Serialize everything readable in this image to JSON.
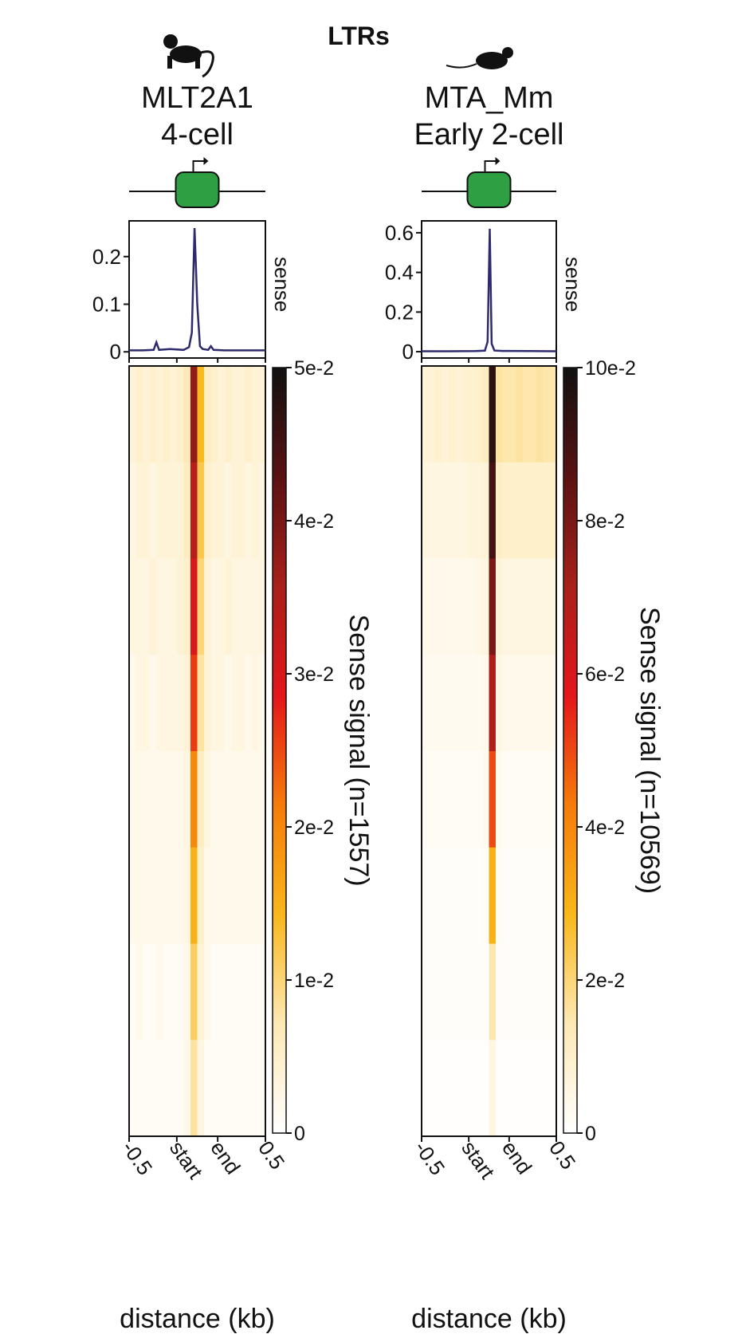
{
  "title": "LTRs",
  "chart_data": [
    {
      "type": "heatmap_profile",
      "title": [
        "MLT2A1",
        "4-cell"
      ],
      "profile": {
        "label": "sense",
        "color": "#2e2a6e",
        "x": [
          -0.5,
          -0.4,
          -0.32,
          -0.3,
          -0.28,
          -0.2,
          -0.1,
          -0.06,
          -0.04,
          -0.02,
          0,
          0.02,
          0.04,
          0.08,
          0.1,
          0.12,
          0.2,
          0.3,
          0.4,
          0.5
        ],
        "values": [
          0.003,
          0.003,
          0.004,
          0.02,
          0.004,
          0.006,
          0.004,
          0.01,
          0.04,
          0.26,
          0.1,
          0.012,
          0.006,
          0.004,
          0.012,
          0.004,
          0.003,
          0.003,
          0.003,
          0.003
        ],
        "ylim": [
          -0.013,
          0.275
        ],
        "yticks": [
          0,
          0.1,
          0.2
        ]
      },
      "heatmap": {
        "colorbar_label": "Sense signal (n=1557)",
        "bins": [
          -0.5,
          -0.45,
          -0.4,
          -0.35,
          -0.3,
          -0.25,
          -0.2,
          -0.15,
          -0.1,
          -0.05,
          0,
          0.05,
          0.1,
          0.15,
          0.2,
          0.25,
          0.3,
          0.35,
          0.4,
          0.45,
          0.5
        ],
        "rows": [
          [
            0.004,
            0.005,
            0.004,
            0.005,
            0.004,
            0.005,
            0.004,
            0.005,
            0.007,
            0.038,
            0.014,
            0.006,
            0.005,
            0.004,
            0.005,
            0.004,
            0.004,
            0.005,
            0.004,
            0.004
          ],
          [
            0.003,
            0.004,
            0.004,
            0.003,
            0.004,
            0.004,
            0.004,
            0.004,
            0.006,
            0.034,
            0.012,
            0.005,
            0.004,
            0.004,
            0.003,
            0.004,
            0.004,
            0.003,
            0.004,
            0.003
          ],
          [
            0.003,
            0.003,
            0.003,
            0.004,
            0.003,
            0.003,
            0.003,
            0.004,
            0.005,
            0.03,
            0.01,
            0.004,
            0.003,
            0.003,
            0.004,
            0.003,
            0.003,
            0.003,
            0.003,
            0.003
          ],
          [
            0.002,
            0.003,
            0.003,
            0.002,
            0.003,
            0.003,
            0.003,
            0.003,
            0.004,
            0.026,
            0.008,
            0.004,
            0.003,
            0.003,
            0.002,
            0.003,
            0.003,
            0.002,
            0.003,
            0.002
          ],
          [
            0.002,
            0.002,
            0.002,
            0.002,
            0.002,
            0.002,
            0.002,
            0.002,
            0.003,
            0.02,
            0.006,
            0.003,
            0.002,
            0.002,
            0.002,
            0.002,
            0.002,
            0.002,
            0.002,
            0.002
          ],
          [
            0.002,
            0.002,
            0.002,
            0.002,
            0.002,
            0.002,
            0.002,
            0.002,
            0.003,
            0.015,
            0.005,
            0.002,
            0.002,
            0.002,
            0.002,
            0.002,
            0.002,
            0.002,
            0.002,
            0.002
          ],
          [
            0.001,
            0.002,
            0.001,
            0.001,
            0.002,
            0.001,
            0.001,
            0.001,
            0.002,
            0.011,
            0.004,
            0.002,
            0.001,
            0.001,
            0.001,
            0.001,
            0.001,
            0.001,
            0.001,
            0.001
          ],
          [
            0.001,
            0.001,
            0.001,
            0.001,
            0.001,
            0.001,
            0.001,
            0.001,
            0.002,
            0.008,
            0.003,
            0.001,
            0.001,
            0.001,
            0.001,
            0.001,
            0.001,
            0.001,
            0.001,
            0.001
          ]
        ],
        "clim": [
          0,
          0.05
        ],
        "cticks": [
          0,
          {
            "value": 0.01,
            "label": "1e-2"
          },
          {
            "value": 0.02,
            "label": "2e-2"
          },
          {
            "value": 0.03,
            "label": "3e-2"
          },
          {
            "value": 0.04,
            "label": "4e-2"
          },
          {
            "value": 0.05,
            "label": "5e-2"
          }
        ],
        "colormap": [
          "#ffffff",
          "#fde9b5",
          "#f9b71a",
          "#f57c0a",
          "#e4161b",
          "#a8201a",
          "#5a1212",
          "#111111"
        ]
      },
      "xlabel": "distance (kb)",
      "xlim": [
        -0.5,
        0.5
      ],
      "xticks": [
        -0.5,
        {
          "value": -0.15,
          "label": "start"
        },
        {
          "value": 0.15,
          "label": "end"
        },
        0.5
      ]
    },
    {
      "type": "heatmap_profile",
      "title": [
        "MTA_Mm",
        "Early 2-cell"
      ],
      "profile": {
        "label": "sense",
        "color": "#2e2a6e",
        "x": [
          -0.5,
          -0.3,
          -0.1,
          -0.03,
          -0.01,
          0.006,
          0.02,
          0.04,
          0.1,
          0.3,
          0.5
        ],
        "values": [
          0.002,
          0.002,
          0.003,
          0.005,
          0.05,
          0.62,
          0.04,
          0.006,
          0.004,
          0.003,
          0.002
        ],
        "ylim": [
          -0.032,
          0.66
        ],
        "yticks": [
          0,
          0.2,
          0.4,
          0.6
        ]
      },
      "heatmap": {
        "colorbar_label": "Sense signal (n=10569)",
        "bins": [
          -0.5,
          -0.45,
          -0.4,
          -0.35,
          -0.3,
          -0.25,
          -0.2,
          -0.15,
          -0.1,
          -0.05,
          0,
          0.05,
          0.1,
          0.15,
          0.2,
          0.25,
          0.3,
          0.35,
          0.4,
          0.45,
          0.5
        ],
        "rows": [
          [
            0.008,
            0.008,
            0.009,
            0.008,
            0.009,
            0.008,
            0.009,
            0.009,
            0.01,
            0.012,
            0.095,
            0.016,
            0.015,
            0.015,
            0.016,
            0.015,
            0.015,
            0.016,
            0.015,
            0.015
          ],
          [
            0.006,
            0.006,
            0.006,
            0.006,
            0.006,
            0.006,
            0.006,
            0.007,
            0.007,
            0.008,
            0.09,
            0.011,
            0.01,
            0.01,
            0.01,
            0.01,
            0.01,
            0.01,
            0.01,
            0.01
          ],
          [
            0.004,
            0.004,
            0.004,
            0.004,
            0.004,
            0.004,
            0.004,
            0.004,
            0.005,
            0.006,
            0.08,
            0.007,
            0.006,
            0.006,
            0.006,
            0.006,
            0.006,
            0.006,
            0.006,
            0.006
          ],
          [
            0.003,
            0.003,
            0.003,
            0.003,
            0.003,
            0.003,
            0.003,
            0.003,
            0.003,
            0.004,
            0.07,
            0.005,
            0.004,
            0.004,
            0.004,
            0.004,
            0.004,
            0.004,
            0.004,
            0.004
          ],
          [
            0.002,
            0.002,
            0.002,
            0.002,
            0.002,
            0.002,
            0.002,
            0.002,
            0.002,
            0.003,
            0.05,
            0.003,
            0.002,
            0.002,
            0.002,
            0.002,
            0.002,
            0.002,
            0.002,
            0.002
          ],
          [
            0.001,
            0.001,
            0.001,
            0.001,
            0.001,
            0.001,
            0.001,
            0.001,
            0.001,
            0.002,
            0.03,
            0.002,
            0.001,
            0.001,
            0.001,
            0.001,
            0.001,
            0.001,
            0.001,
            0.001
          ],
          [
            0.001,
            0.001,
            0.001,
            0.001,
            0.001,
            0.001,
            0.001,
            0.001,
            0.001,
            0.001,
            0.015,
            0.001,
            0.001,
            0.001,
            0.001,
            0.001,
            0.001,
            0.001,
            0.001,
            0.001
          ],
          [
            0.0005,
            0.0005,
            0.0005,
            0.0005,
            0.0005,
            0.0005,
            0.0005,
            0.0005,
            0.0005,
            0.0005,
            0.006,
            0.0005,
            0.0005,
            0.0005,
            0.0005,
            0.0005,
            0.0005,
            0.0005,
            0.0005,
            0.0005
          ]
        ],
        "clim": [
          0,
          0.1
        ],
        "cticks": [
          0,
          {
            "value": 0.02,
            "label": "2e-2"
          },
          {
            "value": 0.04,
            "label": "4e-2"
          },
          {
            "value": 0.06,
            "label": "6e-2"
          },
          {
            "value": 0.08,
            "label": "8e-2"
          },
          {
            "value": 0.1,
            "label": "10e-2"
          }
        ],
        "colormap": [
          "#ffffff",
          "#fde9b5",
          "#f9b71a",
          "#f57c0a",
          "#e4161b",
          "#a8201a",
          "#5a1212",
          "#111111"
        ]
      },
      "xlabel": "distance (kb)",
      "xlim": [
        -0.5,
        0.5
      ],
      "xticks": [
        -0.5,
        {
          "value": -0.15,
          "label": "start"
        },
        {
          "value": 0.15,
          "label": "end"
        },
        0.5
      ]
    }
  ]
}
